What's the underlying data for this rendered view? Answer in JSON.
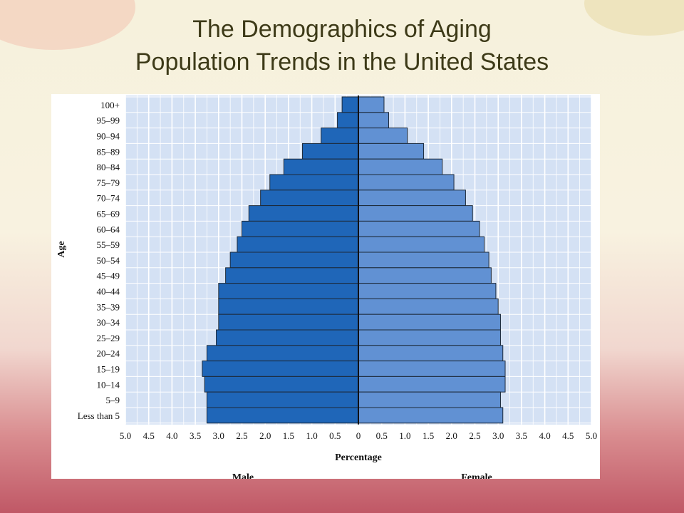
{
  "slide": {
    "title_line1": "The Demographics of Aging",
    "title_line2": "Population Trends in the United States"
  },
  "chart_data": {
    "type": "bar",
    "orientation": "horizontal-pyramid",
    "categories": [
      "100+",
      "95–99",
      "90–94",
      "85–89",
      "80–84",
      "75–79",
      "70–74",
      "65–69",
      "60–64",
      "55–59",
      "50–54",
      "45–49",
      "40–44",
      "35–39",
      "30–34",
      "25–29",
      "20–24",
      "15–19",
      "10–14",
      "5–9",
      "Less than 5"
    ],
    "series": [
      {
        "name": "Male",
        "values": [
          0.35,
          0.45,
          0.8,
          1.2,
          1.6,
          1.9,
          2.1,
          2.35,
          2.5,
          2.6,
          2.75,
          2.85,
          3.0,
          3.0,
          3.0,
          3.05,
          3.25,
          3.35,
          3.3,
          3.25,
          3.25
        ]
      },
      {
        "name": "Female",
        "values": [
          0.55,
          0.65,
          1.05,
          1.4,
          1.8,
          2.05,
          2.3,
          2.45,
          2.6,
          2.7,
          2.8,
          2.85,
          2.95,
          3.0,
          3.05,
          3.05,
          3.1,
          3.15,
          3.15,
          3.05,
          3.1
        ]
      }
    ],
    "x_ticks": [
      "5.0",
      "4.5",
      "4.0",
      "3.5",
      "3.0",
      "2.5",
      "2.0",
      "1.5",
      "1.0",
      "0.5",
      "0",
      "0.5",
      "1.0",
      "1.5",
      "2.0",
      "2.5",
      "3.0",
      "3.5",
      "4.0",
      "4.5",
      "5.0"
    ],
    "xlim": [
      -5,
      5
    ],
    "xlabel": "Percentage",
    "ylabel": "Age",
    "side_labels": {
      "left": "Male",
      "right": "Female"
    },
    "grid": true,
    "colors": {
      "male": "#1f66b8",
      "female": "#6191d3",
      "plot_bg": "#d4e1f4",
      "grid": "#ffffff"
    }
  }
}
